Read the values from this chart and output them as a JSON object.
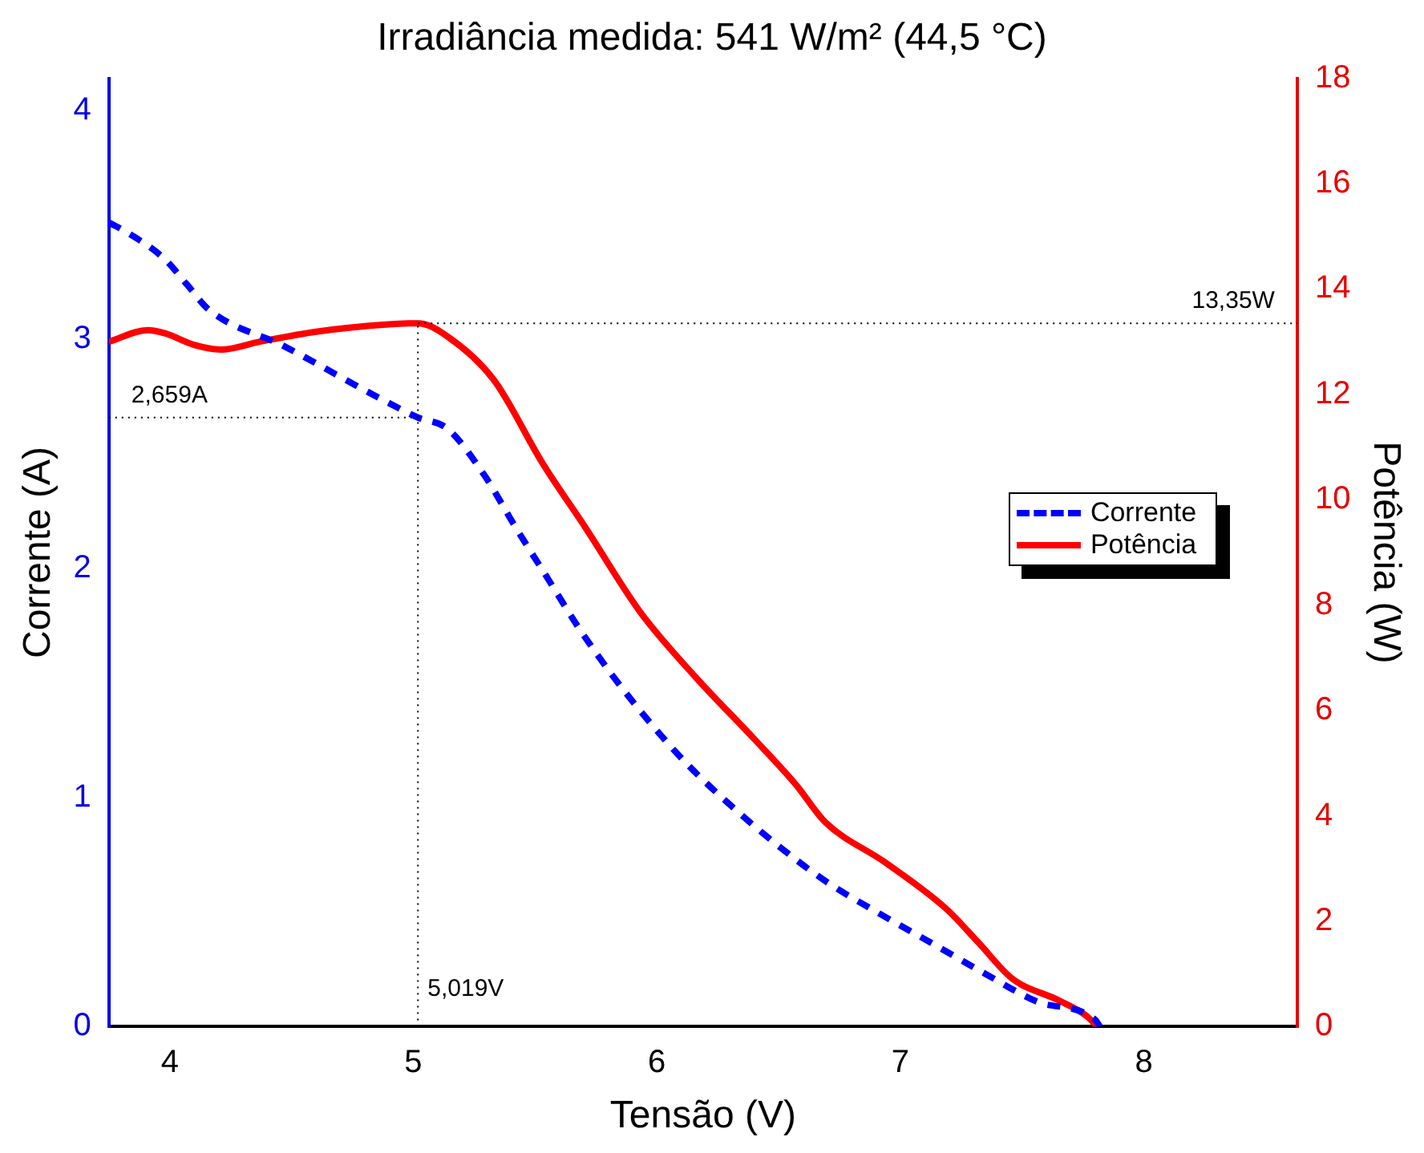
{
  "chart_data": {
    "type": "line",
    "title": "Irradiância medida: 541 W/m² (44,5 °C)",
    "xlabel": "Tensão (V)",
    "ylabel": "Corrente (A)",
    "y2label": "Potência (W)",
    "xlim": [
      3.75,
      8.63
    ],
    "xticks": [
      4,
      5,
      6,
      7,
      8
    ],
    "ylim": [
      0,
      4.14
    ],
    "yticks": [
      0,
      1,
      2,
      3,
      4
    ],
    "y2lim": [
      0,
      18
    ],
    "y2ticks": [
      0,
      2,
      4,
      6,
      8,
      10,
      12,
      14,
      16,
      18
    ],
    "legend": "right",
    "grid": false,
    "series": [
      {
        "name": "Corrente",
        "color": "#0000ff",
        "line_style": "dashed",
        "x": [
          3.75,
          3.82,
          3.98,
          4.07,
          4.16,
          4.47,
          4.85,
          5.019,
          5.14,
          5.29,
          5.42,
          5.55,
          5.68,
          5.82,
          5.97,
          6.13,
          6.32,
          6.51,
          6.7,
          6.92,
          7.12,
          7.35,
          7.56,
          7.8,
          7.82
        ],
        "values": [
          3.51,
          3.47,
          3.35,
          3.24,
          3.13,
          2.97,
          2.75,
          2.659,
          2.61,
          2.41,
          2.18,
          1.96,
          1.74,
          1.53,
          1.33,
          1.14,
          0.95,
          0.78,
          0.63,
          0.49,
          0.37,
          0.23,
          0.11,
          0.03,
          0
        ]
      },
      {
        "name": "Potência",
        "color": "#ff0000",
        "line_style": "solid",
        "axis": "y2",
        "x": [
          3.75,
          3.91,
          3.98,
          4.1,
          4.21,
          4.37,
          4.6,
          4.9,
          5.019,
          5.14,
          5.33,
          5.53,
          5.71,
          5.93,
          6.16,
          6.4,
          6.57,
          6.69,
          6.94,
          7.19,
          7.32,
          7.46,
          7.65,
          7.76,
          7.81
        ],
        "values": [
          13.0,
          13.22,
          13.16,
          12.94,
          12.85,
          13.0,
          13.19,
          13.33,
          13.35,
          13.1,
          12.28,
          10.7,
          9.45,
          7.88,
          6.63,
          5.46,
          4.6,
          3.89,
          3.11,
          2.23,
          1.6,
          0.91,
          0.5,
          0.22,
          0
        ]
      }
    ],
    "ref_lines": [
      {
        "axis": "x",
        "value": 5.019,
        "label": "5,019V",
        "color": "#000000",
        "line_style": "dotted"
      },
      {
        "axis": "y",
        "value": 2.659,
        "label": "2,659A",
        "color": "#000000",
        "line_style": "dotted"
      },
      {
        "axis": "y2",
        "value": 13.35,
        "label": "13,35W",
        "color": "#000000",
        "line_style": "dotted"
      }
    ]
  }
}
